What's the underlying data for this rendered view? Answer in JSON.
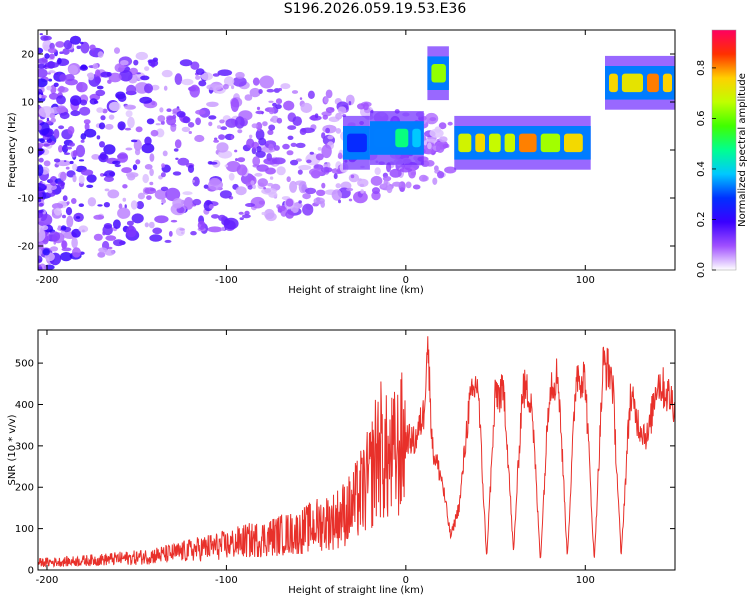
{
  "title": "S196.2026.059.19.53.E36",
  "colors": {
    "snr_line": "#e8302a",
    "axis": "#000000",
    "background": "#ffffff"
  },
  "chart_data": [
    {
      "type": "heatmap",
      "name": "spectrogram",
      "xlabel": "Height of straight line (km)",
      "ylabel": "Frequency (Hz)",
      "xlim": [
        -205,
        150
      ],
      "ylim": [
        -25,
        25
      ],
      "x_ticks": [
        -200,
        -100,
        0,
        100
      ],
      "x_tick_labels": [
        "-200",
        "-100",
        "0",
        "100"
      ],
      "y_ticks": [
        -20,
        -10,
        0,
        10,
        20
      ],
      "y_tick_labels": [
        "-20",
        "-10",
        "0",
        "10",
        "20"
      ],
      "colorbar": {
        "label": "Normalized spectral amplitude",
        "range": [
          0.0,
          0.95
        ],
        "ticks": [
          0.0,
          0.2,
          0.4,
          0.6,
          0.8
        ],
        "tick_labels": [
          "0.0",
          "0.2",
          "0.4",
          "0.6",
          "0.8"
        ]
      },
      "bands": [
        {
          "x0": -35,
          "x1": -20,
          "freq": 1.5,
          "amp": 0.3
        },
        {
          "x0": -20,
          "x1": 10,
          "freq": 2.5,
          "amp": 0.4
        },
        {
          "x0": 12,
          "x1": 24,
          "freq": 16,
          "amp": 0.55
        },
        {
          "x0": 27,
          "x1": 103,
          "freq": 1.5,
          "amp": 0.7
        },
        {
          "x0": 111,
          "x1": 150,
          "freq": 14,
          "amp": 0.75
        }
      ]
    },
    {
      "type": "line",
      "name": "snr",
      "xlabel": "Height of straight line (km)",
      "ylabel": "SNR (10 * v/v)",
      "xlim": [
        -205,
        150
      ],
      "ylim": [
        0,
        580
      ],
      "x_ticks": [
        -200,
        -100,
        0,
        100
      ],
      "x_tick_labels": [
        "-200",
        "-100",
        "0",
        "100"
      ],
      "y_ticks": [
        0,
        100,
        200,
        300,
        400,
        500
      ],
      "y_tick_labels": [
        "0",
        "100",
        "200",
        "300",
        "400",
        "500"
      ],
      "series": [
        {
          "name": "SNR",
          "x": [
            -205,
            -190,
            -170,
            -150,
            -130,
            -110,
            -100,
            -90,
            -80,
            -70,
            -60,
            -50,
            -40,
            -30,
            -20,
            -15,
            -10,
            -5,
            0,
            5,
            10,
            12,
            15,
            20,
            25,
            30,
            35,
            40,
            45,
            50,
            55,
            60,
            65,
            70,
            75,
            80,
            85,
            90,
            95,
            100,
            105,
            110,
            115,
            120,
            125,
            130,
            135,
            140,
            145,
            150
          ],
          "values": [
            18,
            20,
            25,
            30,
            40,
            55,
            60,
            70,
            75,
            85,
            90,
            110,
            120,
            150,
            220,
            300,
            260,
            280,
            320,
            310,
            380,
            560,
            290,
            220,
            80,
            160,
            390,
            460,
            30,
            430,
            420,
            40,
            440,
            420,
            20,
            450,
            470,
            30,
            480,
            460,
            20,
            500,
            470,
            30,
            420,
            350,
            320,
            460,
            430,
            400
          ]
        }
      ]
    }
  ]
}
